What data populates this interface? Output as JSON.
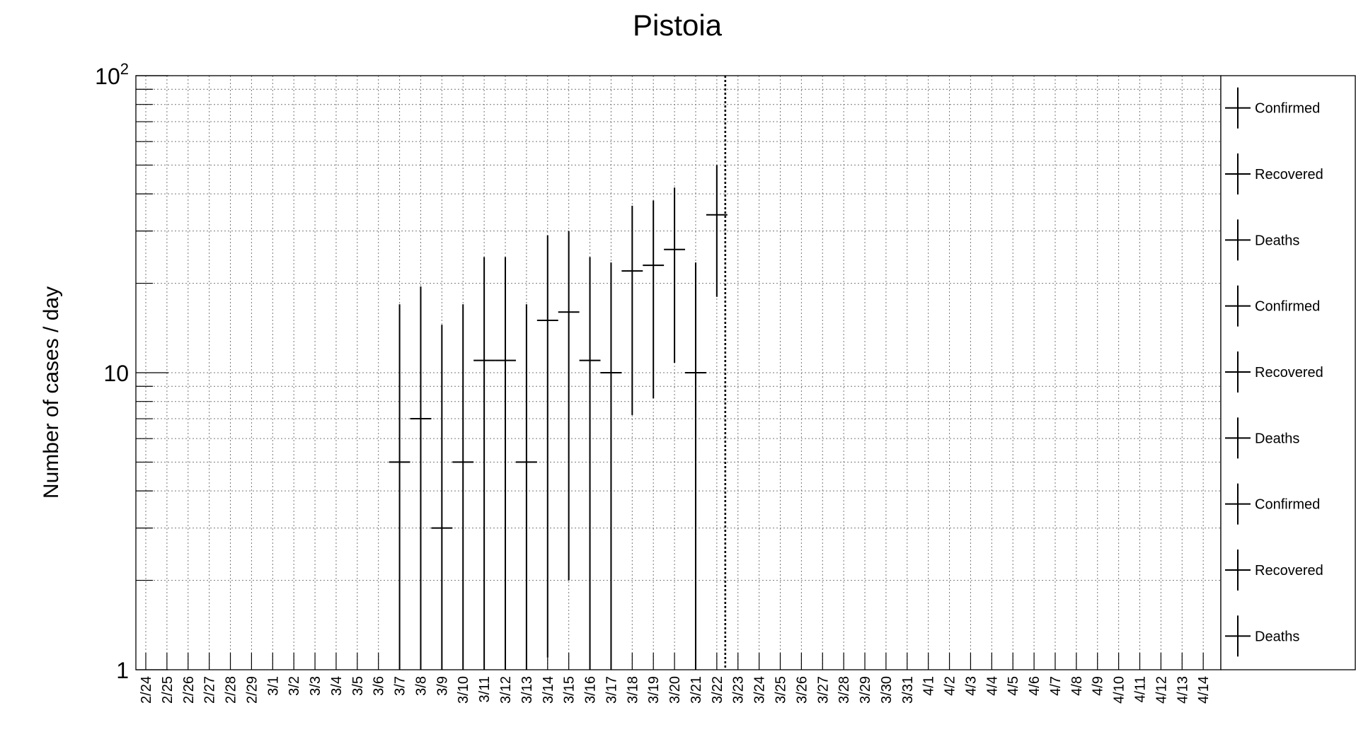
{
  "chart_data": {
    "type": "scatter",
    "title": "Pistoia",
    "ylabel": "Number of cases / day",
    "xlabel": "",
    "yscale": "log",
    "ylim": [
      1,
      100
    ],
    "y_ticks": [
      {
        "value": 1,
        "base": "1",
        "exp": ""
      },
      {
        "value": 10,
        "base": "10",
        "exp": ""
      },
      {
        "value": 100,
        "base": "10",
        "exp": "2"
      }
    ],
    "grid": true,
    "error_bars": true,
    "x_categories": [
      "2/24",
      "2/25",
      "2/26",
      "2/27",
      "2/28",
      "2/29",
      "3/1",
      "3/2",
      "3/3",
      "3/4",
      "3/5",
      "3/6",
      "3/7",
      "3/8",
      "3/9",
      "3/10",
      "3/11",
      "3/12",
      "3/13",
      "3/14",
      "3/15",
      "3/16",
      "3/17",
      "3/18",
      "3/19",
      "3/20",
      "3/21",
      "3/22",
      "3/23",
      "3/24",
      "3/25",
      "3/26",
      "3/27",
      "3/28",
      "3/29",
      "3/30",
      "3/31",
      "4/1",
      "4/2",
      "4/3",
      "4/4",
      "4/5",
      "4/6",
      "4/7",
      "4/8",
      "4/9",
      "4/10",
      "4/11",
      "4/12",
      "4/13",
      "4/14"
    ],
    "marker_line_after": "3/22",
    "points": [
      {
        "x": "3/7",
        "y": 5,
        "err_low": 1,
        "err_high": 17
      },
      {
        "x": "3/8",
        "y": 7,
        "err_low": 1,
        "err_high": 19.5
      },
      {
        "x": "3/9",
        "y": 3,
        "err_low": 1,
        "err_high": 14.5
      },
      {
        "x": "3/10",
        "y": 5,
        "err_low": 1,
        "err_high": 17
      },
      {
        "x": "3/11",
        "y": 11,
        "err_low": 1,
        "err_high": 24.5
      },
      {
        "x": "3/12",
        "y": 11,
        "err_low": 1,
        "err_high": 24.5
      },
      {
        "x": "3/13",
        "y": 5,
        "err_low": 1,
        "err_high": 17
      },
      {
        "x": "3/14",
        "y": 15,
        "err_low": 1.1,
        "err_high": 29
      },
      {
        "x": "3/15",
        "y": 16,
        "err_low": 2,
        "err_high": 30
      },
      {
        "x": "3/16",
        "y": 11,
        "err_low": 1,
        "err_high": 24.5
      },
      {
        "x": "3/17",
        "y": 10,
        "err_low": 1,
        "err_high": 23.5
      },
      {
        "x": "3/18",
        "y": 22,
        "err_low": 7.2,
        "err_high": 36.5
      },
      {
        "x": "3/19",
        "y": 23,
        "err_low": 8.2,
        "err_high": 38
      },
      {
        "x": "3/20",
        "y": 26,
        "err_low": 10.8,
        "err_high": 42
      },
      {
        "x": "3/21",
        "y": 10,
        "err_low": 1,
        "err_high": 23.5
      },
      {
        "x": "3/22",
        "y": 34,
        "err_low": 18,
        "err_high": 50
      }
    ],
    "legend": {
      "placement": "right",
      "entries": [
        "Confirmed",
        "Recovered",
        "Deaths",
        "Confirmed",
        "Recovered",
        "Deaths",
        "Confirmed",
        "Recovered",
        "Deaths"
      ]
    }
  }
}
